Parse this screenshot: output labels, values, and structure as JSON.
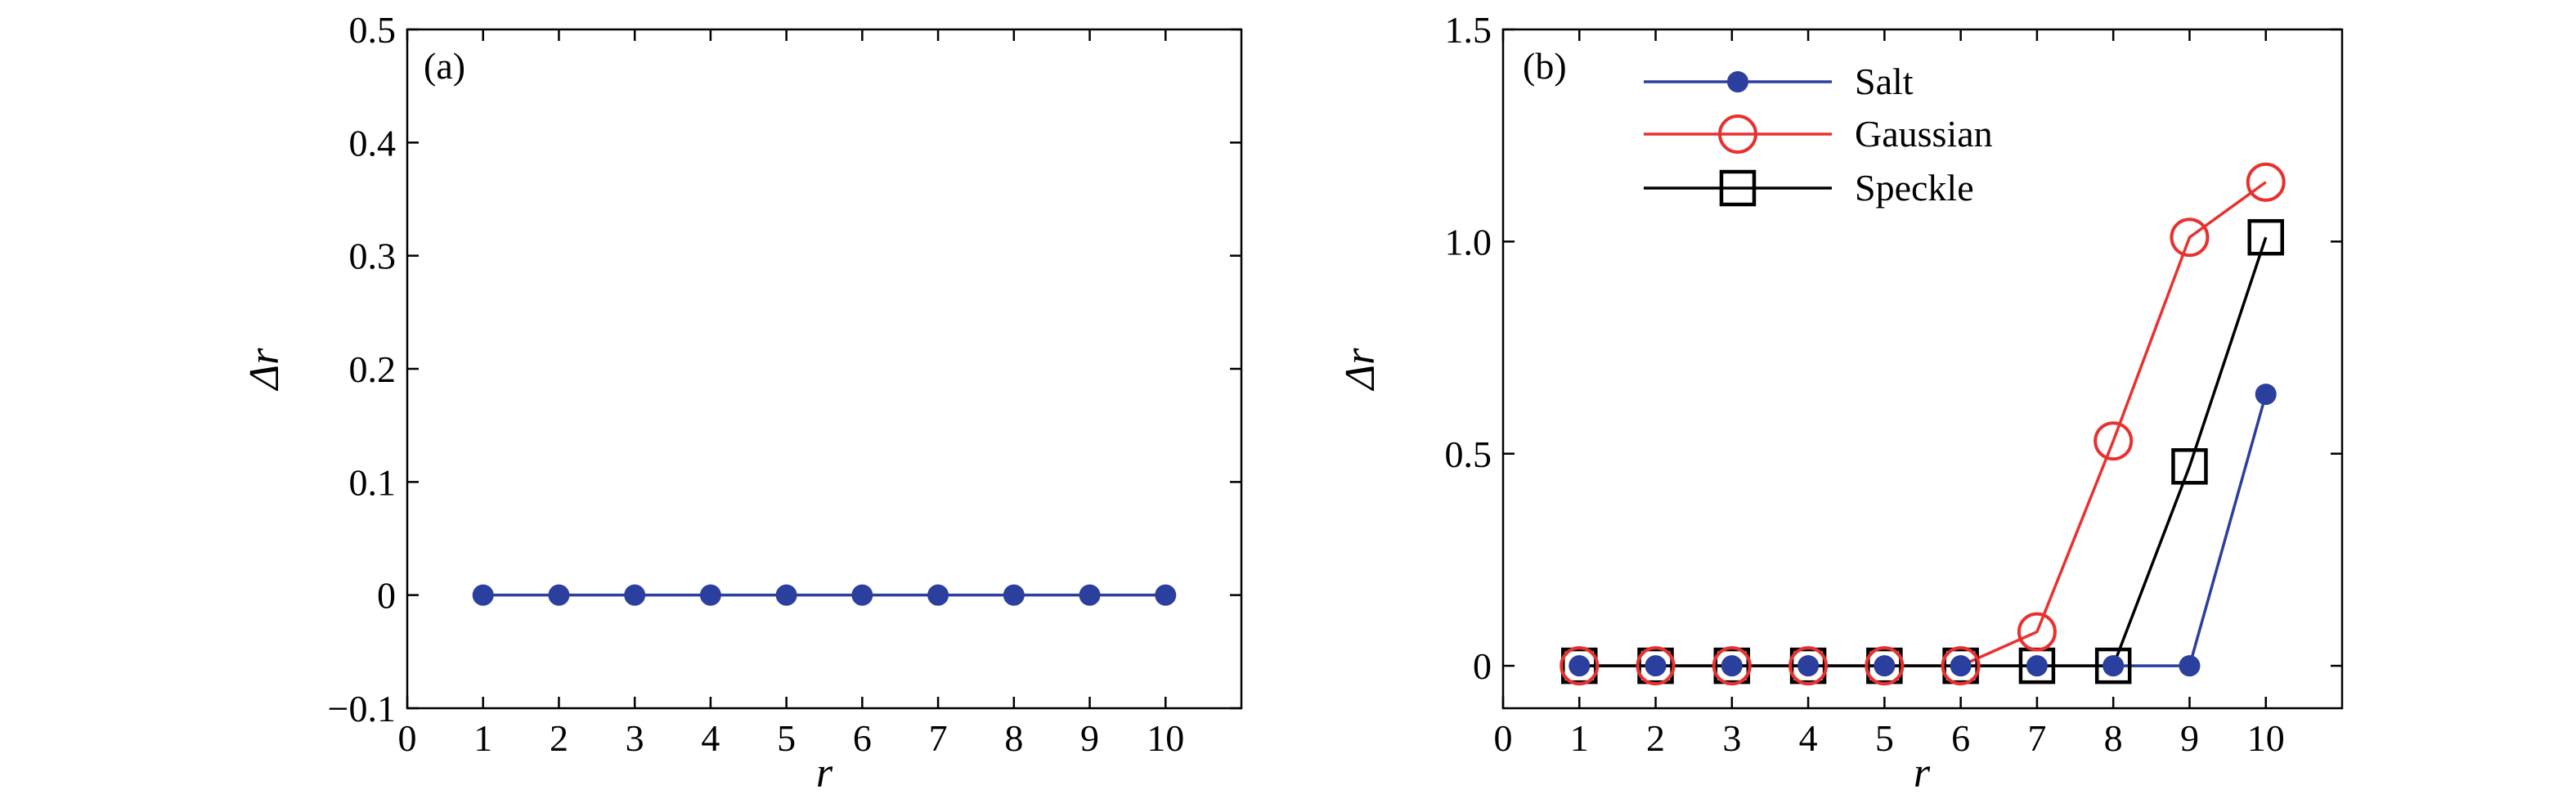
{
  "chart_data": [
    {
      "type": "line",
      "panel_label": "(a)",
      "xlabel": "r",
      "ylabel": "Δr",
      "xlim": [
        0,
        11
      ],
      "ylim": [
        -0.1,
        0.5
      ],
      "x_ticks": [
        "0",
        "1",
        "2",
        "3",
        "4",
        "5",
        "6",
        "7",
        "8",
        "9",
        "10"
      ],
      "y_ticks": [
        "−0.1",
        "0",
        "0.1",
        "0.2",
        "0.3",
        "0.4",
        "0.5"
      ],
      "x": [
        1,
        2,
        3,
        4,
        5,
        6,
        7,
        8,
        9,
        10
      ],
      "series": [
        {
          "values": [
            0,
            0,
            0,
            0,
            0,
            0,
            0,
            0,
            0,
            0
          ],
          "color": "#2b3f9e",
          "marker": "filled-circle"
        }
      ],
      "grid": false
    },
    {
      "type": "line",
      "panel_label": "(b)",
      "xlabel": "r",
      "ylabel": "Δr",
      "xlim": [
        0,
        11
      ],
      "ylim": [
        -0.1,
        1.5
      ],
      "x_ticks": [
        "0",
        "1",
        "2",
        "3",
        "4",
        "5",
        "6",
        "7",
        "8",
        "9",
        "10"
      ],
      "y_ticks": [
        "0",
        "0.5",
        "1.0",
        "1.5"
      ],
      "x": [
        1,
        2,
        3,
        4,
        5,
        6,
        7,
        8,
        9,
        10
      ],
      "series": [
        {
          "name": "Salt",
          "values": [
            0,
            0,
            0,
            0,
            0,
            0,
            0,
            0,
            0,
            0.64
          ],
          "color": "#2b3f9e",
          "marker": "filled-circle"
        },
        {
          "name": "Gaussian",
          "values": [
            0,
            0,
            0,
            0,
            0,
            0,
            0.08,
            0.53,
            1.01,
            1.14
          ],
          "color": "#e8312f",
          "marker": "open-circle"
        },
        {
          "name": "Speckle",
          "values": [
            0,
            0,
            0,
            0,
            0,
            0,
            0,
            0,
            0.47,
            1.01
          ],
          "color": "#000000",
          "marker": "open-square"
        }
      ],
      "legend_position": "top-left",
      "grid": false
    }
  ]
}
